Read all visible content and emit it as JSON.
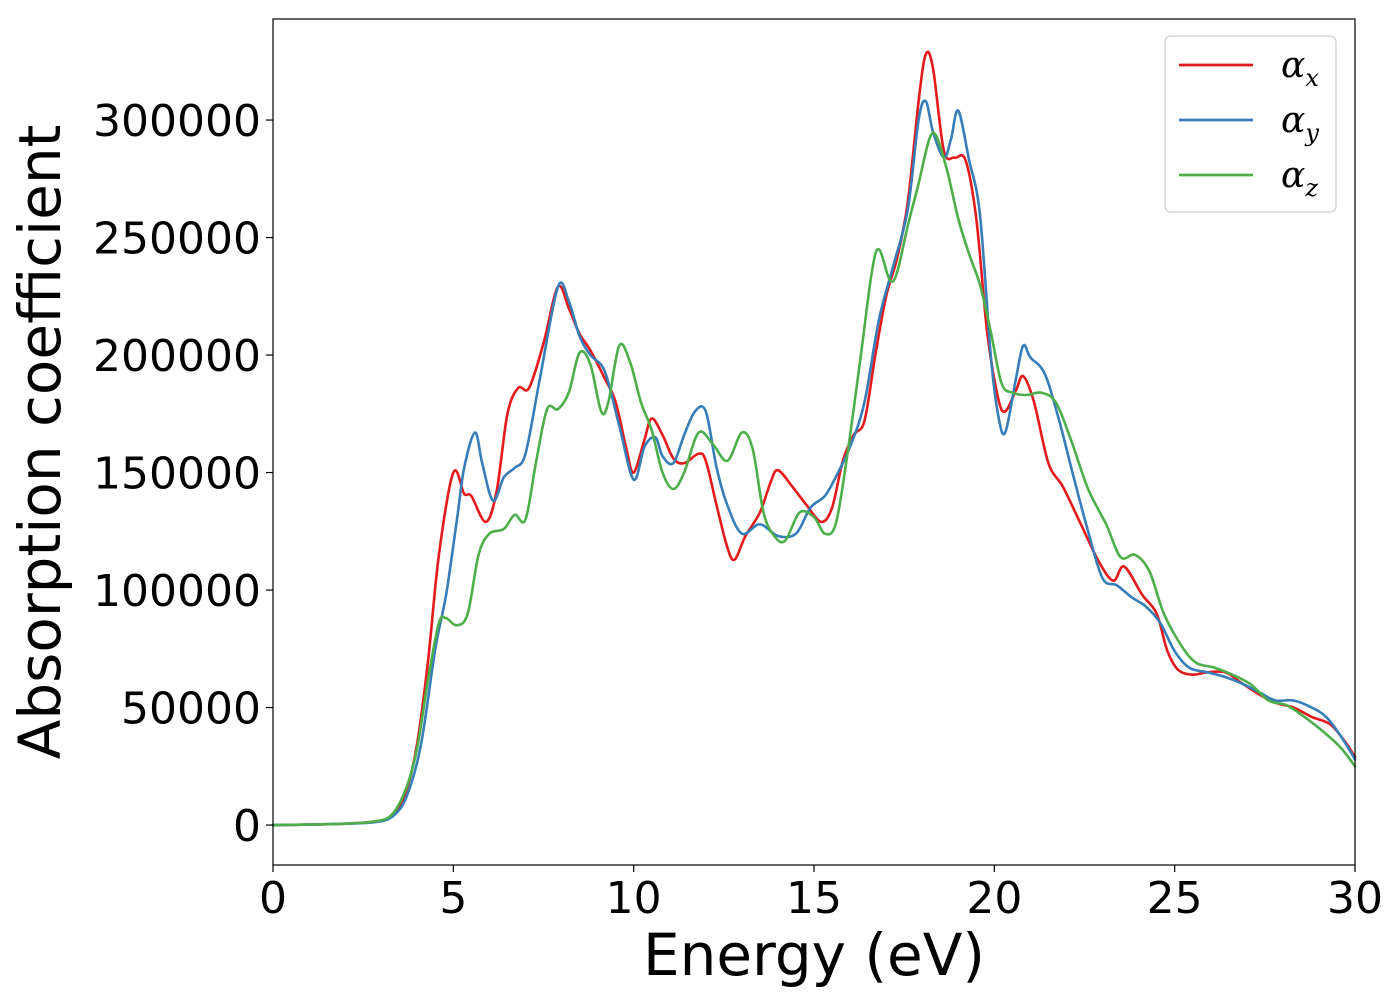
{
  "chart_data": {
    "type": "line",
    "xlabel": "Energy (eV)",
    "ylabel": "Absorption coefficient",
    "xlim": [
      0,
      30
    ],
    "ylim": [
      -17000,
      343000
    ],
    "xticks": [
      0,
      5,
      10,
      15,
      20,
      25,
      30
    ],
    "yticks": [
      0,
      50000,
      100000,
      150000,
      200000,
      250000,
      300000
    ],
    "grid": false,
    "legend_position": "top-right",
    "series": [
      {
        "name": "α",
        "subscript": "x",
        "color": "#e41a1c",
        "points": [
          [
            0,
            0
          ],
          [
            1,
            200
          ],
          [
            2,
            600
          ],
          [
            2.8,
            1500
          ],
          [
            3.3,
            4000
          ],
          [
            3.7,
            15000
          ],
          [
            4.0,
            35000
          ],
          [
            4.3,
            70000
          ],
          [
            4.6,
            115000
          ],
          [
            5.0,
            150000
          ],
          [
            5.3,
            141000
          ],
          [
            5.5,
            140000
          ],
          [
            5.9,
            129000
          ],
          [
            6.2,
            142000
          ],
          [
            6.5,
            175000
          ],
          [
            6.8,
            186000
          ],
          [
            7.1,
            186000
          ],
          [
            7.5,
            205000
          ],
          [
            7.9,
            229000
          ],
          [
            8.2,
            220000
          ],
          [
            8.5,
            209000
          ],
          [
            8.8,
            202000
          ],
          [
            9.2,
            190000
          ],
          [
            9.5,
            180000
          ],
          [
            9.8,
            160000
          ],
          [
            10.0,
            150000
          ],
          [
            10.3,
            164000
          ],
          [
            10.5,
            173000
          ],
          [
            10.8,
            166000
          ],
          [
            11.1,
            156000
          ],
          [
            11.4,
            154000
          ],
          [
            11.8,
            158000
          ],
          [
            12.0,
            155000
          ],
          [
            12.3,
            136000
          ],
          [
            12.6,
            118000
          ],
          [
            12.8,
            113000
          ],
          [
            13.1,
            123000
          ],
          [
            13.5,
            133000
          ],
          [
            13.8,
            146000
          ],
          [
            14.0,
            151000
          ],
          [
            14.4,
            144000
          ],
          [
            14.8,
            136000
          ],
          [
            15.2,
            129000
          ],
          [
            15.5,
            135000
          ],
          [
            15.8,
            155000
          ],
          [
            16.1,
            166000
          ],
          [
            16.4,
            172000
          ],
          [
            16.7,
            200000
          ],
          [
            17.0,
            225000
          ],
          [
            17.3,
            241000
          ],
          [
            17.6,
            265000
          ],
          [
            17.9,
            308000
          ],
          [
            18.1,
            328000
          ],
          [
            18.3,
            322000
          ],
          [
            18.6,
            287000
          ],
          [
            18.9,
            284000
          ],
          [
            19.2,
            283000
          ],
          [
            19.5,
            258000
          ],
          [
            19.8,
            210000
          ],
          [
            20.1,
            182000
          ],
          [
            20.3,
            176000
          ],
          [
            20.6,
            185000
          ],
          [
            20.8,
            191000
          ],
          [
            21.1,
            180000
          ],
          [
            21.5,
            154000
          ],
          [
            21.9,
            144000
          ],
          [
            22.4,
            128000
          ],
          [
            22.9,
            112000
          ],
          [
            23.3,
            104000
          ],
          [
            23.6,
            110000
          ],
          [
            24.1,
            98000
          ],
          [
            24.5,
            90000
          ],
          [
            24.8,
            74000
          ],
          [
            25.1,
            66000
          ],
          [
            25.5,
            64000
          ],
          [
            25.9,
            65000
          ],
          [
            26.4,
            65000
          ],
          [
            26.8,
            61000
          ],
          [
            27.3,
            56000
          ],
          [
            27.8,
            52000
          ],
          [
            28.3,
            50000
          ],
          [
            28.8,
            46000
          ],
          [
            29.3,
            43000
          ],
          [
            29.7,
            36000
          ],
          [
            30.0,
            29000
          ]
        ]
      },
      {
        "name": "α",
        "subscript": "y",
        "color": "#377eb8",
        "points": [
          [
            0,
            0
          ],
          [
            1,
            200
          ],
          [
            2,
            600
          ],
          [
            2.8,
            1200
          ],
          [
            3.3,
            3500
          ],
          [
            3.7,
            12000
          ],
          [
            4.1,
            34000
          ],
          [
            4.5,
            75000
          ],
          [
            4.8,
            98000
          ],
          [
            5.1,
            130000
          ],
          [
            5.3,
            152000
          ],
          [
            5.6,
            167000
          ],
          [
            5.8,
            154000
          ],
          [
            6.1,
            138000
          ],
          [
            6.4,
            148000
          ],
          [
            6.7,
            152000
          ],
          [
            7.0,
            158000
          ],
          [
            7.4,
            190000
          ],
          [
            7.9,
            229000
          ],
          [
            8.2,
            223000
          ],
          [
            8.5,
            208000
          ],
          [
            8.8,
            200000
          ],
          [
            9.2,
            193000
          ],
          [
            9.6,
            170000
          ],
          [
            10.0,
            147000
          ],
          [
            10.3,
            161000
          ],
          [
            10.6,
            165000
          ],
          [
            10.8,
            157000
          ],
          [
            11.1,
            154000
          ],
          [
            11.4,
            166000
          ],
          [
            11.7,
            176000
          ],
          [
            12.0,
            176000
          ],
          [
            12.3,
            152000
          ],
          [
            12.6,
            136000
          ],
          [
            13.0,
            124000
          ],
          [
            13.5,
            128000
          ],
          [
            14.0,
            123000
          ],
          [
            14.5,
            124000
          ],
          [
            14.9,
            135000
          ],
          [
            15.3,
            140000
          ],
          [
            15.6,
            148000
          ],
          [
            16.0,
            161000
          ],
          [
            16.4,
            180000
          ],
          [
            16.8,
            215000
          ],
          [
            17.2,
            238000
          ],
          [
            17.6,
            262000
          ],
          [
            17.9,
            300000
          ],
          [
            18.1,
            308000
          ],
          [
            18.3,
            295000
          ],
          [
            18.6,
            284000
          ],
          [
            18.8,
            292000
          ],
          [
            19.0,
            304000
          ],
          [
            19.3,
            283000
          ],
          [
            19.6,
            260000
          ],
          [
            19.9,
            200000
          ],
          [
            20.1,
            175000
          ],
          [
            20.3,
            167000
          ],
          [
            20.6,
            190000
          ],
          [
            20.8,
            204000
          ],
          [
            21.0,
            199000
          ],
          [
            21.4,
            192000
          ],
          [
            21.8,
            172000
          ],
          [
            22.2,
            148000
          ],
          [
            22.6,
            125000
          ],
          [
            23.0,
            105000
          ],
          [
            23.4,
            102000
          ],
          [
            23.8,
            97000
          ],
          [
            24.2,
            93000
          ],
          [
            24.6,
            86000
          ],
          [
            25.0,
            74000
          ],
          [
            25.4,
            67000
          ],
          [
            25.9,
            65000
          ],
          [
            26.4,
            63000
          ],
          [
            26.9,
            60000
          ],
          [
            27.4,
            56000
          ],
          [
            27.8,
            53000
          ],
          [
            28.3,
            53000
          ],
          [
            28.8,
            50000
          ],
          [
            29.2,
            46000
          ],
          [
            29.6,
            38000
          ],
          [
            30.0,
            28000
          ]
        ]
      },
      {
        "name": "α",
        "subscript": "z",
        "color": "#4daf4a",
        "points": [
          [
            0,
            0
          ],
          [
            1,
            200
          ],
          [
            2,
            600
          ],
          [
            2.8,
            1500
          ],
          [
            3.3,
            4500
          ],
          [
            3.7,
            16000
          ],
          [
            4.0,
            33000
          ],
          [
            4.3,
            62000
          ],
          [
            4.6,
            86000
          ],
          [
            4.8,
            88000
          ],
          [
            5.1,
            85000
          ],
          [
            5.4,
            90000
          ],
          [
            5.7,
            115000
          ],
          [
            6.0,
            124000
          ],
          [
            6.4,
            126000
          ],
          [
            6.7,
            132000
          ],
          [
            7.0,
            130000
          ],
          [
            7.3,
            155000
          ],
          [
            7.6,
            177000
          ],
          [
            7.9,
            177000
          ],
          [
            8.2,
            184000
          ],
          [
            8.5,
            201000
          ],
          [
            8.8,
            196000
          ],
          [
            9.1,
            176000
          ],
          [
            9.3,
            180000
          ],
          [
            9.6,
            204000
          ],
          [
            9.9,
            197000
          ],
          [
            10.2,
            180000
          ],
          [
            10.5,
            168000
          ],
          [
            10.8,
            150000
          ],
          [
            11.1,
            143000
          ],
          [
            11.4,
            150000
          ],
          [
            11.8,
            167000
          ],
          [
            12.2,
            162000
          ],
          [
            12.6,
            155000
          ],
          [
            13.0,
            167000
          ],
          [
            13.3,
            160000
          ],
          [
            13.6,
            133000
          ],
          [
            13.9,
            123000
          ],
          [
            14.2,
            121000
          ],
          [
            14.6,
            133000
          ],
          [
            15.0,
            131000
          ],
          [
            15.3,
            124000
          ],
          [
            15.6,
            128000
          ],
          [
            15.9,
            155000
          ],
          [
            16.3,
            200000
          ],
          [
            16.6,
            235000
          ],
          [
            16.8,
            245000
          ],
          [
            17.1,
            232000
          ],
          [
            17.3,
            235000
          ],
          [
            17.6,
            255000
          ],
          [
            17.9,
            273000
          ],
          [
            18.2,
            292000
          ],
          [
            18.4,
            293000
          ],
          [
            18.7,
            278000
          ],
          [
            19.0,
            258000
          ],
          [
            19.3,
            243000
          ],
          [
            19.6,
            230000
          ],
          [
            19.9,
            210000
          ],
          [
            20.2,
            188000
          ],
          [
            20.5,
            184000
          ],
          [
            20.9,
            183000
          ],
          [
            21.3,
            184000
          ],
          [
            21.7,
            180000
          ],
          [
            22.1,
            165000
          ],
          [
            22.6,
            143000
          ],
          [
            23.1,
            128000
          ],
          [
            23.5,
            114000
          ],
          [
            23.9,
            115000
          ],
          [
            24.3,
            108000
          ],
          [
            24.7,
            90000
          ],
          [
            25.2,
            76000
          ],
          [
            25.6,
            69000
          ],
          [
            26.1,
            67000
          ],
          [
            26.6,
            64000
          ],
          [
            27.1,
            60000
          ],
          [
            27.6,
            53000
          ],
          [
            28.1,
            51000
          ],
          [
            28.6,
            46000
          ],
          [
            29.1,
            40000
          ],
          [
            29.6,
            33000
          ],
          [
            30.0,
            25000
          ]
        ]
      }
    ]
  }
}
